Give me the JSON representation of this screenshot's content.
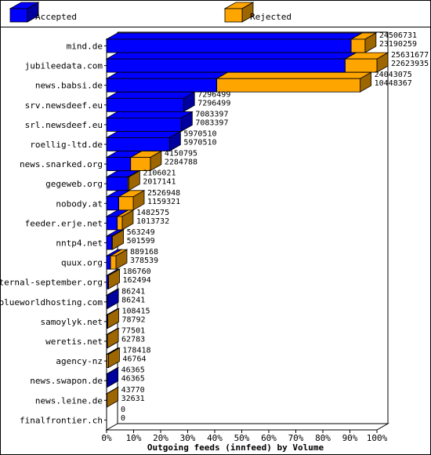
{
  "chart_data": {
    "type": "bar",
    "orientation": "horizontal",
    "stacked": true,
    "title": "Outgoing feeds (innfeed) by Volume",
    "legend_position": "top",
    "xlim": [
      0,
      100
    ],
    "x_ticks": [
      "0%",
      "10%",
      "20%",
      "30%",
      "40%",
      "50%",
      "60%",
      "70%",
      "80%",
      "90%",
      "100%"
    ],
    "grid": false,
    "colors": {
      "accepted": "#0000ff",
      "rejected": "#ffa500"
    },
    "series": [
      {
        "name": "Accepted",
        "color": "#0000ff"
      },
      {
        "name": "Rejected",
        "color": "#ffa500"
      }
    ],
    "categories": [
      "mind.de",
      "jubileedata.com",
      "news.babsi.de",
      "srv.newsdeef.eu",
      "srl.newsdeef.eu",
      "roellig-ltd.de",
      "news.snarked.org",
      "gegeweb.org",
      "nobody.at",
      "feeder.erje.net",
      "nntp4.net",
      "quux.org",
      "eternal-september.org",
      "blueworldhosting.com",
      "samoylyk.net",
      "weretis.net",
      "agency-nz",
      "news.swapon.de",
      "news.leine.de",
      "finalfrontier.ch"
    ],
    "offered": [
      24506731,
      25631677,
      24043075,
      7296499,
      7083397,
      5970510,
      4150795,
      2106021,
      2526948,
      1482575,
      563249,
      889168,
      186760,
      86241,
      108415,
      77501,
      178418,
      46365,
      43770,
      0
    ],
    "accepted": [
      23190259,
      22623935,
      10448367,
      7296499,
      7083397,
      5970510,
      2284788,
      2017141,
      1159321,
      1013732,
      501599,
      378539,
      162494,
      86241,
      78792,
      62783,
      46764,
      46365,
      32631,
      0
    ],
    "value_labels": [
      [
        "24506731",
        "23190259"
      ],
      [
        "25631677",
        "22623935"
      ],
      [
        "24043075",
        "10448367"
      ],
      [
        "7296499",
        "7296499"
      ],
      [
        "7083397",
        "7083397"
      ],
      [
        "5970510",
        "5970510"
      ],
      [
        "4150795",
        "2284788"
      ],
      [
        "2106021",
        "2017141"
      ],
      [
        "2526948",
        "1159321"
      ],
      [
        "1482575",
        "1013732"
      ],
      [
        "563249",
        "501599"
      ],
      [
        "889168",
        "378539"
      ],
      [
        "186760",
        "162494"
      ],
      [
        "86241",
        "86241"
      ],
      [
        "108415",
        "78792"
      ],
      [
        "77501",
        "62783"
      ],
      [
        "178418",
        "46764"
      ],
      [
        "46365",
        "46365"
      ],
      [
        "43770",
        "32631"
      ],
      [
        "0",
        "0"
      ]
    ],
    "max_value": 25631677
  }
}
